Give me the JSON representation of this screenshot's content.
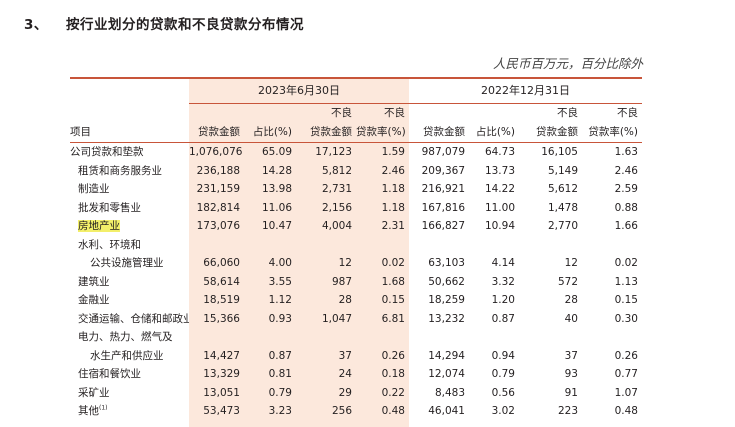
{
  "section": {
    "number": "3、",
    "title": "按行业划分的贷款和不良贷款分布情况"
  },
  "unit_note": "人民币百万元，百分比除外",
  "periods": [
    "2023年6月30日",
    "2022年12月31日"
  ],
  "col_headers_top": [
    "不良",
    "不良",
    "不良",
    "不良"
  ],
  "col_headers": [
    "项目",
    "贷款金额",
    "占比(%)",
    "贷款金额",
    "贷款率(%)",
    "贷款金额",
    "占比(%)",
    "贷款金额",
    "贷款率(%)"
  ],
  "rows": [
    {
      "label": "公司贷款和垫款",
      "cells": [
        "1,076,076",
        "65.09",
        "17,123",
        "1.59",
        "987,079",
        "64.73",
        "16,105",
        "1.63"
      ]
    },
    {
      "label": "租赁和商务服务业",
      "cells": [
        "236,188",
        "14.28",
        "5,812",
        "2.46",
        "209,367",
        "13.73",
        "5,149",
        "2.46"
      ]
    },
    {
      "label": "制造业",
      "cells": [
        "231,159",
        "13.98",
        "2,731",
        "1.18",
        "216,921",
        "14.22",
        "5,612",
        "2.59"
      ]
    },
    {
      "label": "批发和零售业",
      "cells": [
        "182,814",
        "11.06",
        "2,156",
        "1.18",
        "167,816",
        "11.00",
        "1,478",
        "0.88"
      ]
    },
    {
      "label": "房地产业",
      "cells": [
        "173,076",
        "10.47",
        "4,004",
        "2.31",
        "166,827",
        "10.94",
        "2,770",
        "1.66"
      ]
    },
    {
      "label": "水利、环境和",
      "cells": [
        "",
        "",
        "",
        "",
        "",
        "",
        "",
        ""
      ]
    },
    {
      "label": "公共设施管理业",
      "cells": [
        "66,060",
        "4.00",
        "12",
        "0.02",
        "63,103",
        "4.14",
        "12",
        "0.02"
      ]
    },
    {
      "label": "建筑业",
      "cells": [
        "58,614",
        "3.55",
        "987",
        "1.68",
        "50,662",
        "3.32",
        "572",
        "1.13"
      ]
    },
    {
      "label": "金融业",
      "cells": [
        "18,519",
        "1.12",
        "28",
        "0.15",
        "18,259",
        "1.20",
        "28",
        "0.15"
      ]
    },
    {
      "label": "交通运输、仓储和邮政业",
      "cells": [
        "15,366",
        "0.93",
        "1,047",
        "6.81",
        "13,232",
        "0.87",
        "40",
        "0.30"
      ]
    },
    {
      "label": "电力、热力、燃气及",
      "cells": [
        "",
        "",
        "",
        "",
        "",
        "",
        "",
        ""
      ]
    },
    {
      "label": "水生产和供应业",
      "cells": [
        "14,427",
        "0.87",
        "37",
        "0.26",
        "14,294",
        "0.94",
        "37",
        "0.26"
      ]
    },
    {
      "label": "住宿和餐饮业",
      "cells": [
        "13,329",
        "0.81",
        "24",
        "0.18",
        "12,074",
        "0.79",
        "93",
        "0.77"
      ]
    },
    {
      "label": "采矿业",
      "cells": [
        "13,051",
        "0.79",
        "29",
        "0.22",
        "8,483",
        "0.56",
        "91",
        "1.07"
      ]
    },
    {
      "label": "其他",
      "footnote": "(1)",
      "cells": [
        "53,473",
        "3.23",
        "256",
        "0.48",
        "46,041",
        "3.02",
        "223",
        "0.48"
      ]
    }
  ],
  "highlight_color": "#f3ef6a",
  "band_color": "#fce8dc",
  "rule_color": "#c8553a"
}
